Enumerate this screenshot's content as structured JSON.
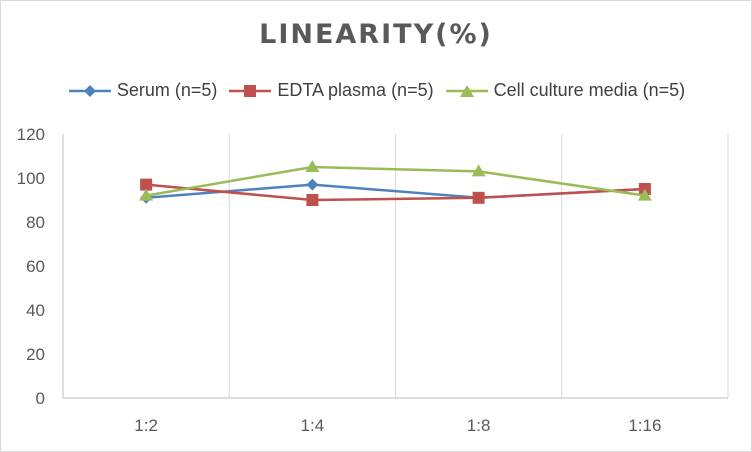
{
  "chart_data": {
    "type": "line",
    "title": "LINEARITY(%)",
    "categories": [
      "1:2",
      "1:4",
      "1:8",
      "1:16"
    ],
    "ylim": [
      0,
      120
    ],
    "yticks": [
      0,
      20,
      40,
      60,
      80,
      100,
      120
    ],
    "grid": "vertical",
    "legend_position": "top",
    "series": [
      {
        "name": "Serum (n=5)",
        "marker": "diamond",
        "color": "#4f81bd",
        "values": [
          91,
          97,
          91,
          95
        ]
      },
      {
        "name": "EDTA plasma (n=5)",
        "marker": "square",
        "color": "#c0504d",
        "values": [
          97,
          90,
          91,
          95
        ]
      },
      {
        "name": "Cell culture media (n=5)",
        "marker": "triangle",
        "color": "#9bbb59",
        "values": [
          92,
          105,
          103,
          92
        ]
      }
    ]
  }
}
